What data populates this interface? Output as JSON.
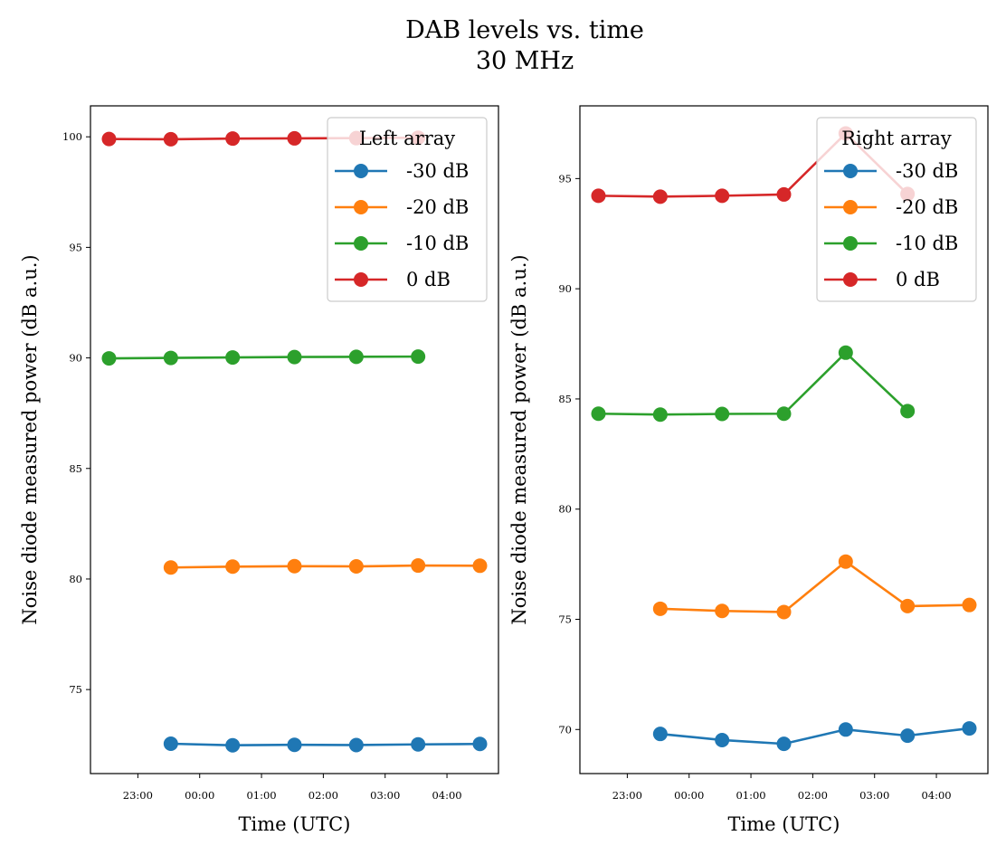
{
  "figure": {
    "title_line1": "DAB levels vs. time",
    "title_line2": "30 MHz"
  },
  "colors": {
    "-30 dB": "#1f77b4",
    "-20 dB": "#ff7f0e",
    "-10 dB": "#2ca02c",
    "0 dB": "#d62728"
  },
  "chart_data": [
    {
      "type": "line",
      "legend_title": "Left array",
      "legend_position": "upper right",
      "xlabel": "Time (UTC)",
      "ylabel": "Noise diode measured power (dB a.u.)",
      "xlim": [
        "22:14",
        "04:50"
      ],
      "ylim": [
        71.2,
        101.4
      ],
      "xticks": [
        "23:00",
        "00:00",
        "01:00",
        "02:00",
        "03:00",
        "04:00"
      ],
      "yticks": [
        75,
        80,
        85,
        90,
        95,
        100
      ],
      "grid": false,
      "series": [
        {
          "name": "-30 dB",
          "x": [
            "23:32",
            "00:32",
            "01:32",
            "02:32",
            "03:32",
            "04:32"
          ],
          "y": [
            72.55,
            72.48,
            72.5,
            72.49,
            72.52,
            72.54
          ]
        },
        {
          "name": "-20 dB",
          "x": [
            "23:32",
            "00:32",
            "01:32",
            "02:32",
            "03:32",
            "04:32"
          ],
          "y": [
            80.52,
            80.56,
            80.58,
            80.57,
            80.61,
            80.6
          ]
        },
        {
          "name": "-10 dB",
          "x": [
            "22:32",
            "23:32",
            "00:32",
            "01:32",
            "02:32",
            "03:32"
          ],
          "y": [
            89.98,
            90.0,
            90.02,
            90.04,
            90.05,
            90.06
          ]
        },
        {
          "name": "0 dB",
          "x": [
            "22:32",
            "23:32",
            "00:32",
            "01:32",
            "02:32",
            "03:32"
          ],
          "y": [
            99.9,
            99.89,
            99.92,
            99.93,
            99.94,
            99.96
          ]
        }
      ]
    },
    {
      "type": "line",
      "legend_title": "Right array",
      "legend_position": "upper right",
      "xlabel": "Time (UTC)",
      "ylabel": "Noise diode measured power (dB a.u.)",
      "xlim": [
        "22:14",
        "04:50"
      ],
      "ylim": [
        68.0,
        98.3
      ],
      "xticks": [
        "23:00",
        "00:00",
        "01:00",
        "02:00",
        "03:00",
        "04:00"
      ],
      "yticks": [
        70,
        75,
        80,
        85,
        90,
        95
      ],
      "grid": false,
      "series": [
        {
          "name": "-30 dB",
          "x": [
            "23:32",
            "00:32",
            "01:32",
            "02:32",
            "03:32",
            "04:32"
          ],
          "y": [
            69.8,
            69.52,
            69.35,
            70.0,
            69.72,
            70.05
          ]
        },
        {
          "name": "-20 dB",
          "x": [
            "23:32",
            "00:32",
            "01:32",
            "02:32",
            "03:32",
            "04:32"
          ],
          "y": [
            75.48,
            75.38,
            75.33,
            77.62,
            75.6,
            75.65
          ]
        },
        {
          "name": "-10 dB",
          "x": [
            "22:32",
            "23:32",
            "00:32",
            "01:32",
            "02:32",
            "03:32"
          ],
          "y": [
            84.33,
            84.29,
            84.32,
            84.33,
            87.1,
            84.45
          ]
        },
        {
          "name": "0 dB",
          "x": [
            "22:32",
            "23:32",
            "00:32",
            "01:32",
            "02:32",
            "03:32"
          ],
          "y": [
            94.22,
            94.18,
            94.22,
            94.28,
            97.05,
            94.3
          ]
        }
      ]
    }
  ]
}
